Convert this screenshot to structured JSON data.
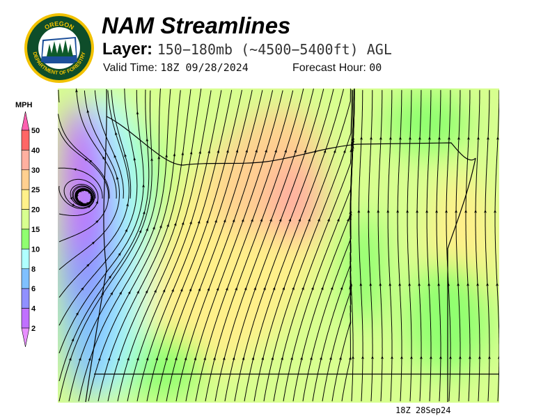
{
  "header": {
    "title": "NAM Streamlines",
    "layer_label": "Layer:",
    "layer_value": "150−180mb (~4500−5400ft) AGL",
    "valid_time_label": "Valid Time:",
    "valid_time_value": "18Z 09/28/2024",
    "forecast_hour_label": "Forecast Hour:",
    "forecast_hour_value": "00"
  },
  "logo": {
    "text_top": "OREGON",
    "text_bottom": "DEPARTMENT OF FORESTRY",
    "colors": {
      "ring": "#f2c200",
      "field": "#0e4d2a",
      "sky": "#ffffff",
      "water": "#1c4f9a"
    }
  },
  "legend": {
    "unit": "MPH",
    "ticks": [
      "50",
      "40",
      "30",
      "25",
      "20",
      "15",
      "10",
      "8",
      "6",
      "4",
      "2"
    ],
    "colors": [
      "#ff6666",
      "#ffb0a0",
      "#ffd090",
      "#fff08a",
      "#d8ff90",
      "#90ff70",
      "#b0ffff",
      "#80c0ff",
      "#9090ff",
      "#c070ff"
    ],
    "over_color": "#ff60b0",
    "under_color": "#e890ff"
  },
  "map": {
    "timestamp": "18Z 28Sep24",
    "streamline_color": "#000000"
  }
}
